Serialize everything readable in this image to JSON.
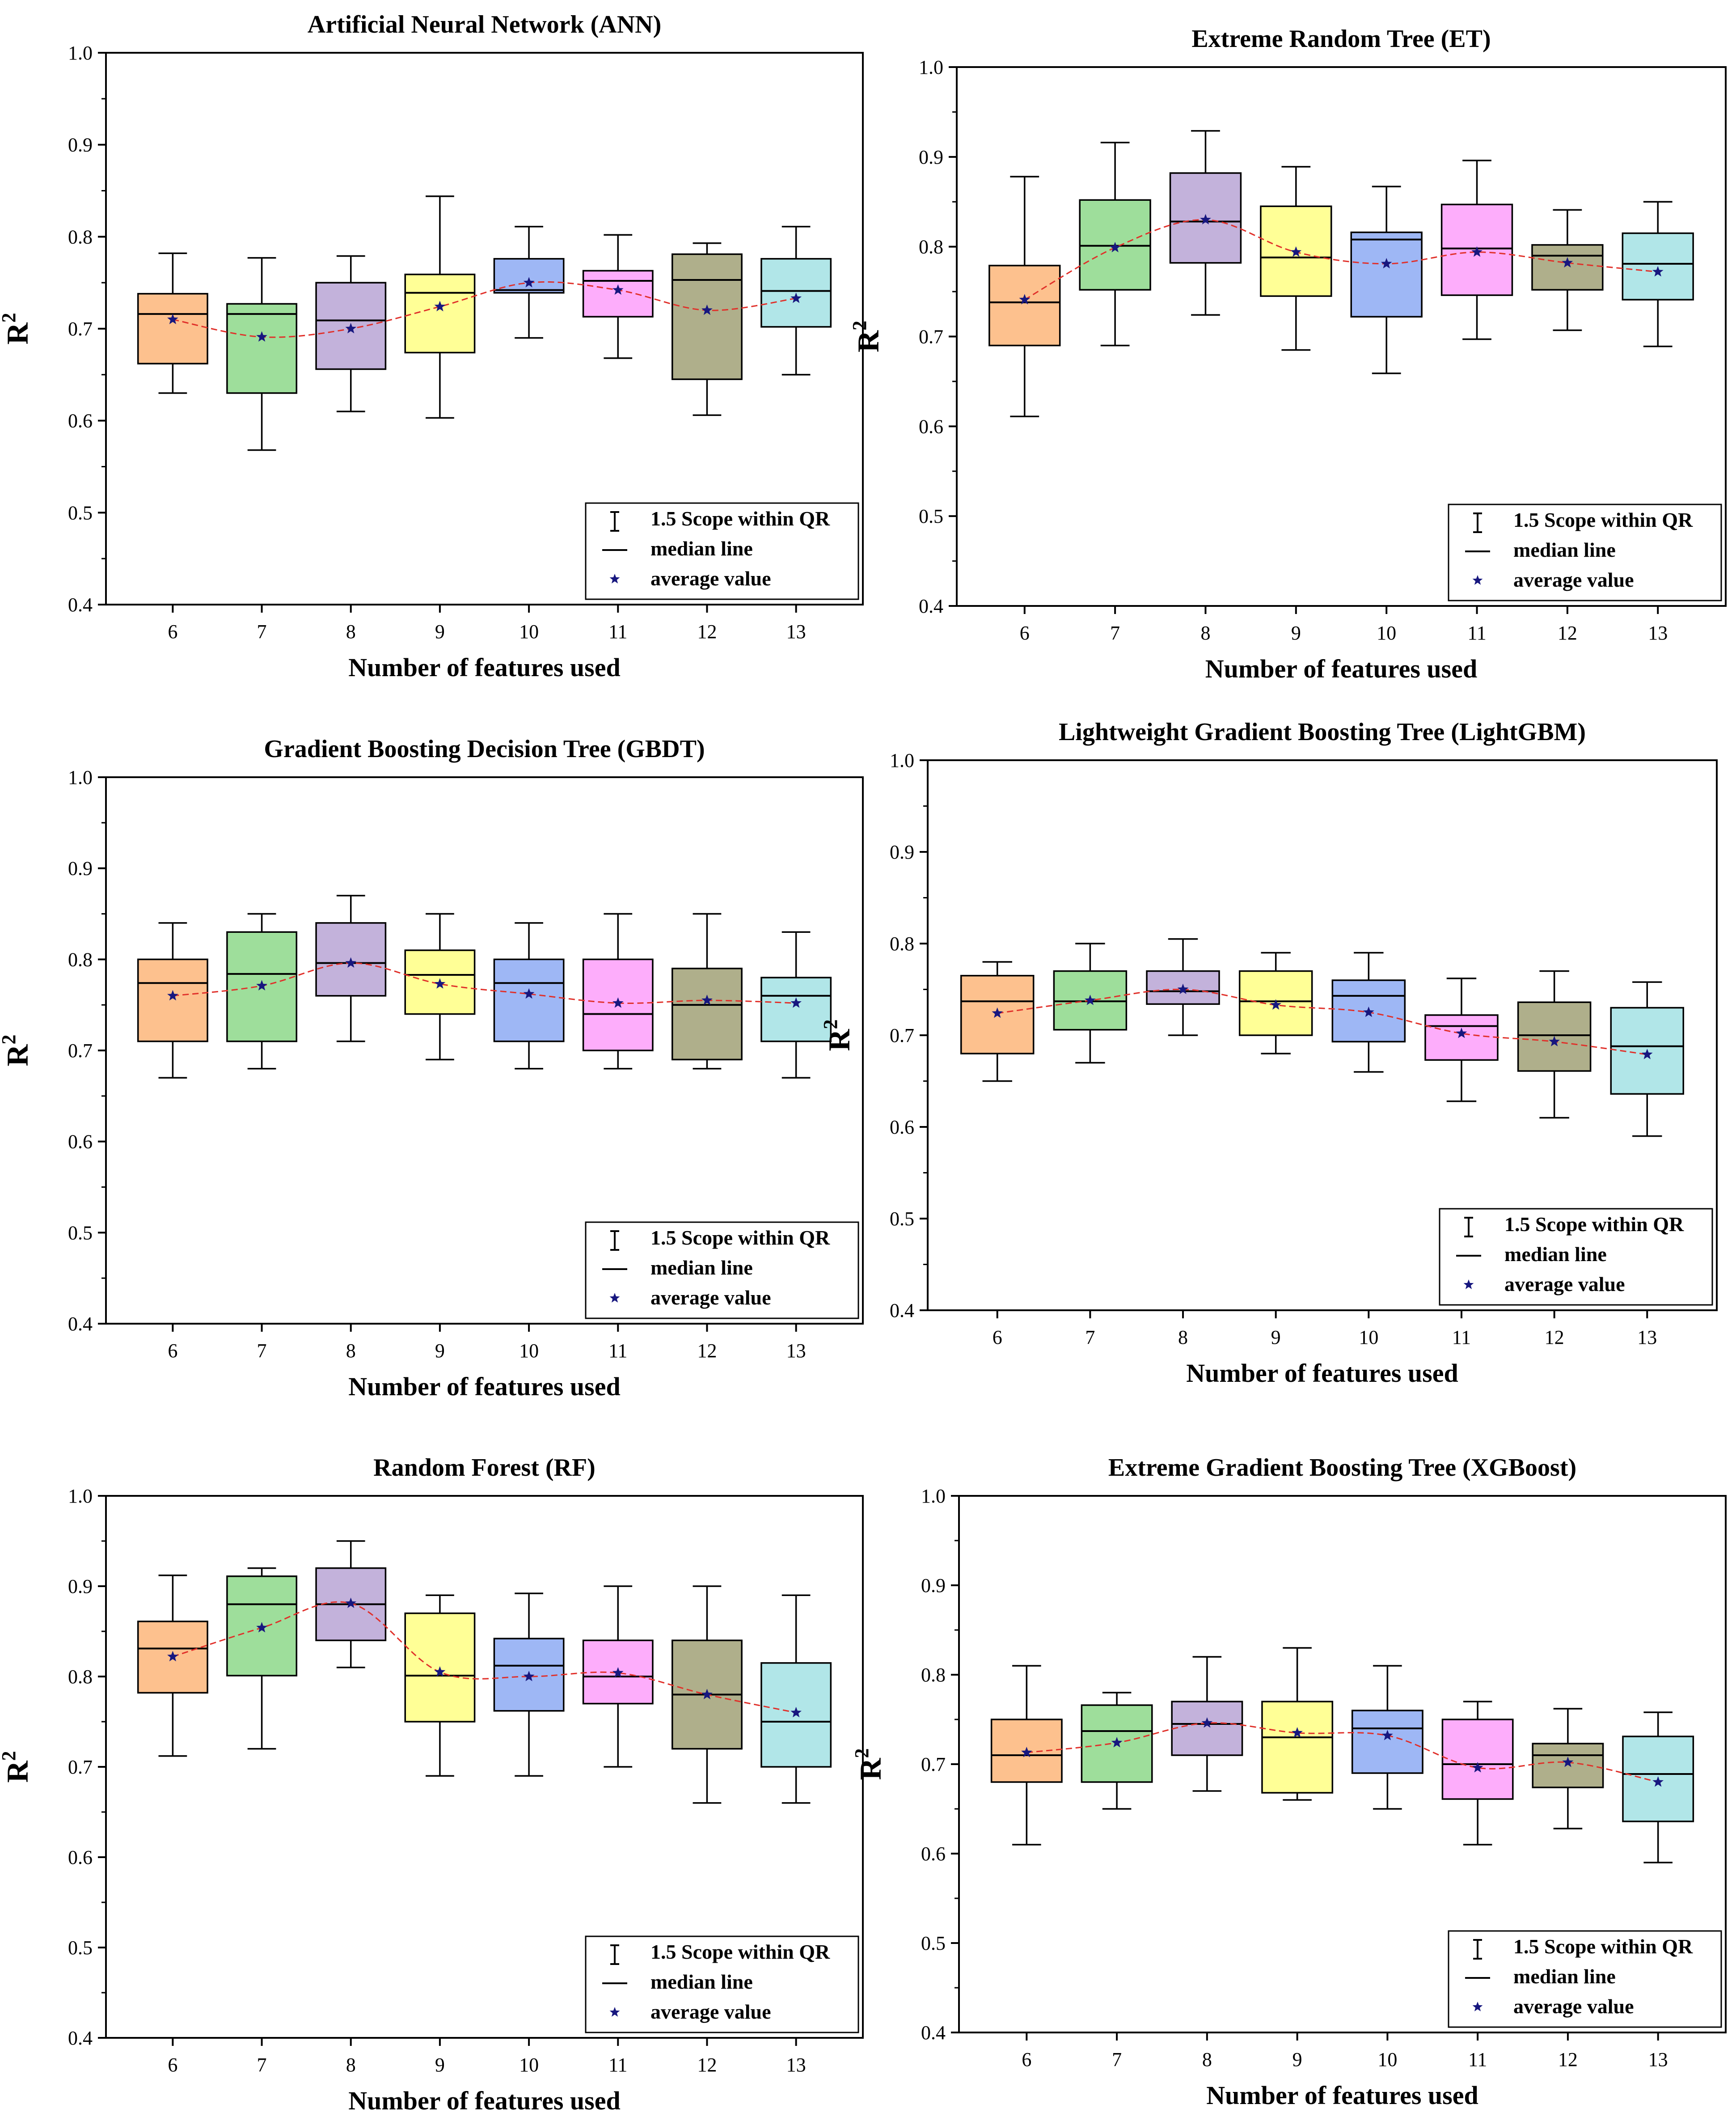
{
  "chart_data": [
    {
      "type": "box",
      "title": "Artificial Neural Network (ANN)",
      "xlabel": "Number of features used",
      "ylabel": "R",
      "ylabel_sup": "2",
      "ylim": [
        0.4,
        1.0
      ],
      "yticks": [
        "0.4",
        "0.5",
        "0.6",
        "0.7",
        "0.8",
        "0.9",
        "1.0"
      ],
      "categories": [
        "6",
        "7",
        "8",
        "9",
        "10",
        "11",
        "12",
        "13"
      ],
      "series": [
        {
          "category": "6",
          "min": 0.63,
          "q1": 0.662,
          "median": 0.716,
          "q3": 0.738,
          "max": 0.782,
          "mean": 0.71
        },
        {
          "category": "7",
          "min": 0.568,
          "q1": 0.63,
          "median": 0.716,
          "q3": 0.727,
          "max": 0.777,
          "mean": 0.691
        },
        {
          "category": "8",
          "min": 0.61,
          "q1": 0.656,
          "median": 0.709,
          "q3": 0.75,
          "max": 0.779,
          "mean": 0.7
        },
        {
          "category": "9",
          "min": 0.603,
          "q1": 0.674,
          "median": 0.739,
          "q3": 0.759,
          "max": 0.844,
          "mean": 0.724
        },
        {
          "category": "10",
          "min": 0.69,
          "q1": 0.739,
          "median": 0.742,
          "q3": 0.776,
          "max": 0.811,
          "mean": 0.75
        },
        {
          "category": "11",
          "min": 0.668,
          "q1": 0.713,
          "median": 0.752,
          "q3": 0.763,
          "max": 0.802,
          "mean": 0.742
        },
        {
          "category": "12",
          "min": 0.606,
          "q1": 0.645,
          "median": 0.753,
          "q3": 0.781,
          "max": 0.793,
          "mean": 0.72
        },
        {
          "category": "13",
          "min": 0.65,
          "q1": 0.702,
          "median": 0.741,
          "q3": 0.776,
          "max": 0.811,
          "mean": 0.733
        }
      ],
      "legend": {
        "position": "bottom-right",
        "items": [
          "1.5 Scope within QR",
          "median line",
          "average value"
        ]
      }
    },
    {
      "type": "box",
      "title": "Extreme Random Tree (ET)",
      "xlabel": "Number of features used",
      "ylabel": "R",
      "ylabel_sup": "2",
      "ylim": [
        0.4,
        1.0
      ],
      "yticks": [
        "0.4",
        "0.5",
        "0.6",
        "0.7",
        "0.8",
        "0.9",
        "1.0"
      ],
      "categories": [
        "6",
        "7",
        "8",
        "9",
        "10",
        "11",
        "12",
        "13"
      ],
      "series": [
        {
          "category": "6",
          "min": 0.611,
          "q1": 0.69,
          "median": 0.738,
          "q3": 0.779,
          "max": 0.878,
          "mean": 0.741
        },
        {
          "category": "7",
          "min": 0.69,
          "q1": 0.752,
          "median": 0.801,
          "q3": 0.852,
          "max": 0.916,
          "mean": 0.799
        },
        {
          "category": "8",
          "min": 0.724,
          "q1": 0.782,
          "median": 0.828,
          "q3": 0.882,
          "max": 0.929,
          "mean": 0.83
        },
        {
          "category": "9",
          "min": 0.685,
          "q1": 0.745,
          "median": 0.788,
          "q3": 0.845,
          "max": 0.889,
          "mean": 0.794
        },
        {
          "category": "10",
          "min": 0.659,
          "q1": 0.722,
          "median": 0.808,
          "q3": 0.816,
          "max": 0.867,
          "mean": 0.781
        },
        {
          "category": "11",
          "min": 0.697,
          "q1": 0.746,
          "median": 0.798,
          "q3": 0.847,
          "max": 0.896,
          "mean": 0.794
        },
        {
          "category": "12",
          "min": 0.707,
          "q1": 0.752,
          "median": 0.79,
          "q3": 0.802,
          "max": 0.841,
          "mean": 0.782
        },
        {
          "category": "13",
          "min": 0.689,
          "q1": 0.741,
          "median": 0.781,
          "q3": 0.815,
          "max": 0.85,
          "mean": 0.772
        }
      ],
      "legend": {
        "position": "bottom-right",
        "items": [
          "1.5 Scope within QR",
          "median line",
          "average value"
        ]
      }
    },
    {
      "type": "box",
      "title": "Gradient Boosting Decision Tree (GBDT)",
      "xlabel": "Number of features used",
      "ylabel": "R",
      "ylabel_sup": "2",
      "ylim": [
        0.4,
        1.0
      ],
      "yticks": [
        "0.4",
        "0.5",
        "0.6",
        "0.7",
        "0.8",
        "0.9",
        "1.0"
      ],
      "categories": [
        "6",
        "7",
        "8",
        "9",
        "10",
        "11",
        "12",
        "13"
      ],
      "series": [
        {
          "category": "6",
          "min": 0.67,
          "q1": 0.71,
          "median": 0.774,
          "q3": 0.8,
          "max": 0.84,
          "mean": 0.76
        },
        {
          "category": "7",
          "min": 0.68,
          "q1": 0.71,
          "median": 0.784,
          "q3": 0.83,
          "max": 0.85,
          "mean": 0.771
        },
        {
          "category": "8",
          "min": 0.71,
          "q1": 0.76,
          "median": 0.796,
          "q3": 0.84,
          "max": 0.87,
          "mean": 0.796
        },
        {
          "category": "9",
          "min": 0.69,
          "q1": 0.74,
          "median": 0.783,
          "q3": 0.81,
          "max": 0.85,
          "mean": 0.773
        },
        {
          "category": "10",
          "min": 0.68,
          "q1": 0.71,
          "median": 0.774,
          "q3": 0.8,
          "max": 0.84,
          "mean": 0.762
        },
        {
          "category": "11",
          "min": 0.68,
          "q1": 0.7,
          "median": 0.74,
          "q3": 0.8,
          "max": 0.85,
          "mean": 0.752
        },
        {
          "category": "12",
          "min": 0.68,
          "q1": 0.69,
          "median": 0.75,
          "q3": 0.79,
          "max": 0.85,
          "mean": 0.755
        },
        {
          "category": "13",
          "min": 0.67,
          "q1": 0.71,
          "median": 0.76,
          "q3": 0.78,
          "max": 0.83,
          "mean": 0.752
        }
      ],
      "legend": {
        "position": "bottom-right",
        "items": [
          "1.5 Scope within QR",
          "median line",
          "average value"
        ]
      }
    },
    {
      "type": "box",
      "title": "Lightweight Gradient Boosting Tree (LightGBM)",
      "xlabel": "Number of features used",
      "ylabel": "R",
      "ylabel_sup": "2",
      "ylim": [
        0.4,
        1.0
      ],
      "yticks": [
        "0.4",
        "0.5",
        "0.6",
        "0.7",
        "0.8",
        "0.9",
        "1.0"
      ],
      "categories": [
        "6",
        "7",
        "8",
        "9",
        "10",
        "11",
        "12",
        "13"
      ],
      "series": [
        {
          "category": "6",
          "min": 0.65,
          "q1": 0.68,
          "median": 0.737,
          "q3": 0.765,
          "max": 0.78,
          "mean": 0.724
        },
        {
          "category": "7",
          "min": 0.67,
          "q1": 0.706,
          "median": 0.737,
          "q3": 0.77,
          "max": 0.8,
          "mean": 0.738
        },
        {
          "category": "8",
          "min": 0.7,
          "q1": 0.734,
          "median": 0.748,
          "q3": 0.77,
          "max": 0.805,
          "mean": 0.75
        },
        {
          "category": "9",
          "min": 0.68,
          "q1": 0.7,
          "median": 0.737,
          "q3": 0.77,
          "max": 0.79,
          "mean": 0.733
        },
        {
          "category": "10",
          "min": 0.66,
          "q1": 0.693,
          "median": 0.743,
          "q3": 0.76,
          "max": 0.79,
          "mean": 0.725
        },
        {
          "category": "11",
          "min": 0.628,
          "q1": 0.673,
          "median": 0.71,
          "q3": 0.722,
          "max": 0.762,
          "mean": 0.702
        },
        {
          "category": "12",
          "min": 0.61,
          "q1": 0.661,
          "median": 0.7,
          "q3": 0.736,
          "max": 0.77,
          "mean": 0.693
        },
        {
          "category": "13",
          "min": 0.59,
          "q1": 0.636,
          "median": 0.688,
          "q3": 0.73,
          "max": 0.758,
          "mean": 0.679
        }
      ],
      "legend": {
        "position": "bottom-right",
        "items": [
          "1.5 Scope within QR",
          "median line",
          "average value"
        ]
      }
    },
    {
      "type": "box",
      "title": "Random Forest (RF)",
      "xlabel": "Number of features used",
      "ylabel": "R",
      "ylabel_sup": "2",
      "ylim": [
        0.4,
        1.0
      ],
      "yticks": [
        "0.4",
        "0.5",
        "0.6",
        "0.7",
        "0.8",
        "0.9",
        "1.0"
      ],
      "categories": [
        "6",
        "7",
        "8",
        "9",
        "10",
        "11",
        "12",
        "13"
      ],
      "series": [
        {
          "category": "6",
          "min": 0.712,
          "q1": 0.782,
          "median": 0.831,
          "q3": 0.861,
          "max": 0.912,
          "mean": 0.822
        },
        {
          "category": "7",
          "min": 0.72,
          "q1": 0.801,
          "median": 0.88,
          "q3": 0.911,
          "max": 0.92,
          "mean": 0.854
        },
        {
          "category": "8",
          "min": 0.81,
          "q1": 0.84,
          "median": 0.88,
          "q3": 0.92,
          "max": 0.95,
          "mean": 0.881
        },
        {
          "category": "9",
          "min": 0.69,
          "q1": 0.75,
          "median": 0.801,
          "q3": 0.87,
          "max": 0.89,
          "mean": 0.805
        },
        {
          "category": "10",
          "min": 0.69,
          "q1": 0.762,
          "median": 0.812,
          "q3": 0.842,
          "max": 0.892,
          "mean": 0.8
        },
        {
          "category": "11",
          "min": 0.7,
          "q1": 0.77,
          "median": 0.8,
          "q3": 0.84,
          "max": 0.9,
          "mean": 0.804
        },
        {
          "category": "12",
          "min": 0.66,
          "q1": 0.72,
          "median": 0.78,
          "q3": 0.84,
          "max": 0.9,
          "mean": 0.78
        },
        {
          "category": "13",
          "min": 0.66,
          "q1": 0.7,
          "median": 0.75,
          "q3": 0.815,
          "max": 0.89,
          "mean": 0.76
        }
      ],
      "legend": {
        "position": "bottom-right",
        "items": [
          "1.5 Scope within QR",
          "median line",
          "average value"
        ]
      }
    },
    {
      "type": "box",
      "title": "Extreme Gradient Boosting Tree (XGBoost)",
      "xlabel": "Number of features used",
      "ylabel": "R",
      "ylabel_sup": "2",
      "ylim": [
        0.4,
        1.0
      ],
      "yticks": [
        "0.4",
        "0.5",
        "0.6",
        "0.7",
        "0.8",
        "0.9",
        "1.0"
      ],
      "categories": [
        "6",
        "7",
        "8",
        "9",
        "10",
        "11",
        "12",
        "13"
      ],
      "series": [
        {
          "category": "6",
          "min": 0.61,
          "q1": 0.68,
          "median": 0.71,
          "q3": 0.75,
          "max": 0.81,
          "mean": 0.713
        },
        {
          "category": "7",
          "min": 0.65,
          "q1": 0.68,
          "median": 0.737,
          "q3": 0.766,
          "max": 0.78,
          "mean": 0.724
        },
        {
          "category": "8",
          "min": 0.67,
          "q1": 0.71,
          "median": 0.745,
          "q3": 0.77,
          "max": 0.82,
          "mean": 0.746
        },
        {
          "category": "9",
          "min": 0.66,
          "q1": 0.668,
          "median": 0.73,
          "q3": 0.77,
          "max": 0.83,
          "mean": 0.735
        },
        {
          "category": "10",
          "min": 0.65,
          "q1": 0.69,
          "median": 0.74,
          "q3": 0.76,
          "max": 0.81,
          "mean": 0.732
        },
        {
          "category": "11",
          "min": 0.61,
          "q1": 0.661,
          "median": 0.7,
          "q3": 0.75,
          "max": 0.77,
          "mean": 0.696
        },
        {
          "category": "12",
          "min": 0.628,
          "q1": 0.674,
          "median": 0.71,
          "q3": 0.723,
          "max": 0.762,
          "mean": 0.702
        },
        {
          "category": "13",
          "min": 0.59,
          "q1": 0.636,
          "median": 0.689,
          "q3": 0.731,
          "max": 0.758,
          "mean": 0.68
        }
      ],
      "legend": {
        "position": "bottom-right",
        "items": [
          "1.5 Scope within QR",
          "median line",
          "average value"
        ]
      }
    }
  ],
  "colors": {
    "box_fills": [
      "#FDC18E",
      "#9EDE9B",
      "#C3B2DB",
      "#FFFF96",
      "#9EB7F5",
      "#FDADFB",
      "#AFAF8B",
      "#B1E6E8"
    ],
    "mean_marker": "#17177F",
    "mean_line": "#E0302A",
    "axis": "#000000"
  }
}
